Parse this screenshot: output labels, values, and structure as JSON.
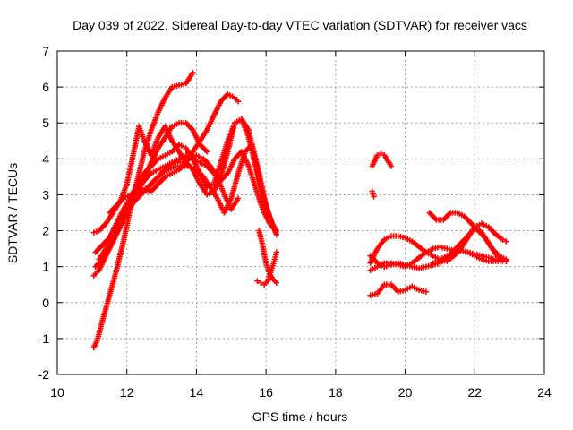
{
  "chart_data": {
    "type": "scatter",
    "title": "Day 039 of 2022, Sidereal Day-to-day VTEC variation (SDTVAR) for receiver vacs",
    "xlabel": "GPS time / hours",
    "ylabel": "SDTVAR / TECUs",
    "xlim": [
      10,
      24
    ],
    "ylim": [
      -2,
      7
    ],
    "xticks": [
      "10",
      "12",
      "14",
      "16",
      "18",
      "20",
      "22",
      "24"
    ],
    "yticks": [
      "-2",
      "-1",
      "0",
      "1",
      "2",
      "3",
      "4",
      "5",
      "6",
      "7"
    ],
    "grid": true,
    "marker": "plus",
    "color": "#ff0000",
    "series": [
      {
        "name": "trace-1",
        "x": [
          11.05,
          11.15,
          11.3,
          11.5,
          11.7,
          11.9,
          12.1,
          12.3,
          12.5,
          12.7,
          12.9,
          13.1,
          13.3,
          13.5,
          13.7,
          13.9
        ],
        "y": [
          -1.25,
          -1.05,
          -0.5,
          0.2,
          0.9,
          1.7,
          2.6,
          3.4,
          4.2,
          4.8,
          5.3,
          5.7,
          6.0,
          6.05,
          6.1,
          6.4
        ]
      },
      {
        "name": "trace-2",
        "x": [
          11.05,
          11.2,
          11.4,
          11.6,
          11.8,
          12.0,
          12.2,
          12.35,
          12.5,
          12.7,
          12.9,
          13.1,
          13.3,
          13.5,
          13.7,
          13.9,
          14.1,
          14.3,
          14.5,
          14.7,
          14.9,
          15.1,
          15.3,
          15.5,
          15.7,
          15.9,
          16.1,
          16.3
        ],
        "y": [
          1.95,
          2.0,
          2.2,
          2.5,
          2.8,
          3.3,
          4.2,
          4.9,
          4.5,
          4.1,
          4.6,
          4.9,
          4.5,
          4.2,
          3.9,
          3.7,
          3.3,
          3.0,
          3.1,
          3.5,
          4.2,
          5.0,
          5.1,
          4.6,
          3.8,
          3.0,
          2.4,
          1.9
        ]
      },
      {
        "name": "trace-3",
        "x": [
          11.1,
          11.3,
          11.5,
          11.7,
          11.9,
          12.1,
          12.3,
          12.5,
          12.7,
          12.9,
          13.1,
          13.3,
          13.5,
          13.7,
          13.9,
          14.1,
          14.3,
          14.5,
          14.7,
          14.9,
          15.1,
          15.3,
          15.5,
          15.7,
          15.9,
          16.1,
          16.3
        ],
        "y": [
          1.4,
          1.6,
          1.8,
          2.1,
          2.5,
          2.9,
          3.3,
          3.6,
          3.8,
          4.0,
          4.1,
          4.2,
          4.4,
          4.3,
          4.0,
          3.6,
          3.2,
          3.3,
          3.9,
          4.5,
          5.0,
          5.1,
          4.8,
          3.9,
          3.0,
          2.3,
          2.0
        ]
      },
      {
        "name": "trace-4",
        "x": [
          11.1,
          11.3,
          11.5,
          11.7,
          11.9,
          12.1,
          12.3,
          12.5,
          12.7,
          12.9,
          13.1,
          13.3,
          13.5,
          13.7,
          13.9,
          14.1,
          14.3,
          14.5,
          14.7,
          14.9,
          15.1,
          15.3,
          15.5,
          15.7,
          15.9,
          16.1,
          16.3
        ],
        "y": [
          1.0,
          1.2,
          1.5,
          1.9,
          2.3,
          2.7,
          3.1,
          3.4,
          3.6,
          3.7,
          3.8,
          3.9,
          4.0,
          4.1,
          4.0,
          3.9,
          3.8,
          3.6,
          3.4,
          3.6,
          4.0,
          4.2,
          3.8,
          3.2,
          2.6,
          2.2,
          2.0
        ]
      },
      {
        "name": "trace-5",
        "x": [
          11.05,
          11.2,
          11.4,
          11.6,
          11.8,
          12.0,
          12.2,
          12.4,
          12.6,
          12.8,
          13.0,
          13.2,
          13.4,
          13.6,
          13.8,
          14.0,
          14.2,
          14.4,
          14.6,
          14.8,
          15.0,
          15.2,
          15.4,
          15.6,
          15.8,
          16.0,
          16.2,
          16.3
        ],
        "y": [
          0.75,
          0.9,
          1.3,
          1.7,
          2.1,
          2.5,
          2.8,
          3.0,
          3.2,
          3.4,
          3.6,
          3.7,
          3.8,
          3.8,
          3.8,
          3.7,
          3.5,
          3.2,
          2.9,
          2.5,
          2.9,
          3.6,
          4.2,
          4.4,
          3.6,
          2.7,
          2.1,
          1.9
        ]
      },
      {
        "name": "trace-6",
        "x": [
          11.2,
          11.4,
          11.6,
          11.8,
          12.0,
          12.2,
          12.4,
          12.6,
          12.8,
          13.0,
          13.2,
          13.4,
          13.6,
          13.8,
          14.0,
          14.2,
          14.4,
          14.6,
          14.8,
          15.0,
          15.2
        ],
        "y": [
          1.2,
          1.5,
          1.8,
          2.2,
          2.6,
          2.9,
          3.1,
          3.2,
          3.4,
          3.6,
          3.8,
          3.9,
          3.9,
          4.0,
          4.1,
          4.0,
          3.8,
          3.5,
          3.0,
          2.6,
          2.9
        ]
      },
      {
        "name": "trace-7",
        "x": [
          11.5,
          11.7,
          11.9,
          12.1,
          12.3,
          12.5,
          12.7,
          12.9,
          13.1,
          13.3,
          13.5,
          13.7,
          13.9,
          14.1,
          14.3,
          14.5,
          14.7,
          14.9,
          15.1,
          15.2
        ],
        "y": [
          2.5,
          2.7,
          2.9,
          3.0,
          3.1,
          3.1,
          3.1,
          3.3,
          3.5,
          3.6,
          3.7,
          3.9,
          4.2,
          4.5,
          4.8,
          5.2,
          5.6,
          5.8,
          5.7,
          5.6
        ]
      },
      {
        "name": "trace-8",
        "x": [
          11.3,
          11.5,
          11.7,
          11.9,
          12.1,
          12.3,
          12.5,
          12.7,
          12.9,
          13.1,
          13.3,
          13.5,
          13.7,
          13.9,
          14.1,
          14.3
        ],
        "y": [
          1.6,
          1.8,
          2.2,
          2.6,
          2.9,
          3.2,
          3.5,
          3.9,
          4.3,
          4.6,
          4.9,
          5.0,
          5.0,
          4.8,
          4.4,
          4.2
        ]
      },
      {
        "name": "trace-9",
        "x": [
          15.75,
          15.85,
          15.95,
          16.05,
          16.15,
          16.25,
          16.3
        ],
        "y": [
          0.6,
          0.55,
          0.5,
          0.6,
          0.9,
          1.2,
          1.4
        ]
      },
      {
        "name": "trace-10",
        "x": [
          15.8,
          15.9,
          16.0,
          16.1,
          16.2,
          16.3
        ],
        "y": [
          2.0,
          1.6,
          1.1,
          0.8,
          0.65,
          0.55
        ]
      },
      {
        "name": "trace-11",
        "x": [
          19.05,
          19.1,
          19.15,
          19.2,
          19.3,
          19.4,
          19.5,
          19.6
        ],
        "y": [
          3.8,
          3.9,
          4.0,
          4.1,
          4.15,
          4.1,
          3.95,
          3.8
        ]
      },
      {
        "name": "trace-12",
        "x": [
          19.05,
          19.1
        ],
        "y": [
          3.1,
          2.95
        ]
      },
      {
        "name": "trace-13",
        "x": [
          19.0,
          19.2,
          19.4,
          19.6,
          19.8,
          20.0,
          20.2,
          20.4,
          20.6,
          20.8,
          21.0,
          21.2,
          21.4,
          21.6,
          21.8,
          22.0,
          22.2,
          22.4,
          22.6,
          22.8,
          22.9
        ],
        "y": [
          1.1,
          1.5,
          1.75,
          1.85,
          1.85,
          1.8,
          1.7,
          1.55,
          1.4,
          1.3,
          1.2,
          1.15,
          1.3,
          1.5,
          1.8,
          2.1,
          2.2,
          2.1,
          1.9,
          1.75,
          1.7
        ]
      },
      {
        "name": "trace-14",
        "x": [
          19.0,
          19.2,
          19.4,
          19.6,
          19.8,
          20.0,
          20.2,
          20.4,
          20.6,
          20.8,
          21.0,
          21.2,
          21.4,
          21.6,
          21.8,
          22.0,
          22.2,
          22.4,
          22.6,
          22.8,
          22.9
        ],
        "y": [
          1.3,
          1.1,
          1.0,
          1.05,
          1.1,
          1.05,
          1.0,
          0.95,
          1.0,
          1.05,
          1.1,
          1.25,
          1.45,
          1.65,
          1.85,
          2.1,
          1.95,
          1.65,
          1.35,
          1.2,
          1.15
        ]
      },
      {
        "name": "trace-15",
        "x": [
          19.0,
          19.2,
          19.4,
          19.6,
          19.8,
          20.0,
          20.2,
          20.4,
          20.6,
          20.8,
          21.0,
          21.2,
          21.4,
          21.6,
          21.8,
          22.0,
          22.2,
          22.4,
          22.6,
          22.8,
          22.9
        ],
        "y": [
          0.9,
          1.0,
          1.1,
          1.1,
          1.05,
          1.0,
          1.1,
          1.25,
          1.4,
          1.5,
          1.55,
          1.5,
          1.45,
          1.45,
          1.4,
          1.3,
          1.2,
          1.15,
          1.15,
          1.15,
          1.15
        ]
      },
      {
        "name": "trace-16",
        "x": [
          19.0,
          19.2,
          19.4,
          19.6,
          19.8,
          20.0,
          20.2,
          20.4,
          20.6
        ],
        "y": [
          0.2,
          0.25,
          0.5,
          0.5,
          0.3,
          0.35,
          0.45,
          0.35,
          0.3
        ]
      },
      {
        "name": "trace-17",
        "x": [
          20.7,
          20.9,
          21.1,
          21.3,
          21.5,
          21.7,
          21.9,
          22.1,
          22.3,
          22.5,
          22.7,
          22.9
        ],
        "y": [
          2.5,
          2.3,
          2.3,
          2.5,
          2.5,
          2.4,
          2.2,
          2.0,
          1.8,
          1.5,
          1.3,
          1.2
        ]
      },
      {
        "name": "trace-18",
        "x": [
          20.8,
          21.0,
          21.2,
          21.4,
          21.6,
          21.8,
          22.0,
          22.2,
          22.4,
          22.6,
          22.8,
          22.9
        ],
        "y": [
          1.1,
          1.2,
          1.3,
          1.4,
          1.45,
          1.4,
          1.35,
          1.3,
          1.25,
          1.2,
          1.2,
          1.15
        ]
      }
    ]
  }
}
